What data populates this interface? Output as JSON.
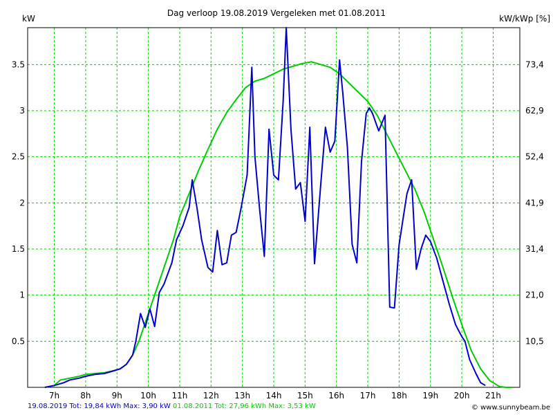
{
  "chart_data": {
    "type": "line",
    "title": "Dag  verloop 19.08.2019   Vergeleken met 01.08.2011",
    "ylabel_left": "kW",
    "ylabel_right": "kW/kWp [%]",
    "xlim": [
      6.15,
      21.85
    ],
    "ylim": [
      0,
      3.9
    ],
    "x_ticks": [
      7,
      8,
      9,
      10,
      11,
      12,
      13,
      14,
      15,
      16,
      17,
      18,
      19,
      20,
      21
    ],
    "x_tick_labels": [
      "7h",
      "8h",
      "9h",
      "10h",
      "11h",
      "12h",
      "13h",
      "14h",
      "15h",
      "16h",
      "17h",
      "18h",
      "19h",
      "20h",
      "21h"
    ],
    "y_ticks": [
      0.5,
      1,
      1.5,
      2,
      2.5,
      3,
      3.5
    ],
    "y_tick_labels": [
      "0.5",
      "1",
      "1.5",
      "2",
      "2.5",
      "3",
      "3.5"
    ],
    "y2_tick_labels": [
      "10,5",
      "21,0",
      "31,4",
      "41,9",
      "52,4",
      "62,9",
      "73,4"
    ],
    "grid": true,
    "series": [
      {
        "name": "19.08.2019",
        "color": "#0000cc",
        "summary": "19.08.2019 Tot: 19,84 kWh Max: 3,90 kW",
        "x": [
          6.7,
          7.0,
          7.3,
          7.5,
          7.8,
          8.0,
          8.3,
          8.6,
          8.9,
          9.1,
          9.3,
          9.5,
          9.6,
          9.75,
          9.9,
          10.05,
          10.2,
          10.35,
          10.5,
          10.75,
          10.9,
          11.1,
          11.3,
          11.4,
          11.55,
          11.7,
          11.9,
          12.05,
          12.2,
          12.35,
          12.5,
          12.65,
          12.8,
          12.95,
          13.15,
          13.3,
          13.4,
          13.55,
          13.7,
          13.85,
          14.0,
          14.15,
          14.3,
          14.4,
          14.55,
          14.7,
          14.85,
          15.0,
          15.15,
          15.3,
          15.5,
          15.65,
          15.8,
          15.95,
          16.1,
          16.2,
          16.35,
          16.5,
          16.65,
          16.8,
          16.95,
          17.05,
          17.15,
          17.35,
          17.55,
          17.7,
          17.85,
          18.0,
          18.25,
          18.4,
          18.55,
          18.7,
          18.85,
          19.0,
          19.2,
          19.4,
          19.6,
          19.8,
          20.0,
          20.1,
          20.25,
          20.45,
          20.6,
          20.75
        ],
        "y": [
          0,
          0.02,
          0.05,
          0.08,
          0.1,
          0.12,
          0.14,
          0.15,
          0.18,
          0.2,
          0.25,
          0.35,
          0.5,
          0.8,
          0.65,
          0.85,
          0.66,
          1.03,
          1.12,
          1.35,
          1.6,
          1.75,
          1.95,
          2.25,
          1.95,
          1.6,
          1.3,
          1.25,
          1.7,
          1.33,
          1.35,
          1.65,
          1.68,
          1.93,
          2.3,
          3.47,
          2.5,
          1.93,
          1.42,
          2.8,
          2.3,
          2.25,
          3.1,
          3.9,
          2.8,
          2.15,
          2.22,
          1.8,
          2.82,
          1.34,
          2.2,
          2.82,
          2.55,
          2.67,
          3.55,
          3.2,
          2.6,
          1.55,
          1.35,
          2.45,
          2.97,
          3.03,
          2.97,
          2.78,
          2.95,
          0.87,
          0.86,
          1.55,
          2.1,
          2.25,
          1.28,
          1.5,
          1.65,
          1.58,
          1.4,
          1.15,
          0.9,
          0.68,
          0.55,
          0.5,
          0.3,
          0.15,
          0.05,
          0.02
        ]
      },
      {
        "name": "01.08.2011",
        "color": "#00cc00",
        "summary": "01.08.2011 Tot: 27,96 kWh Max: 3,53 kW",
        "x": [
          6.7,
          7.0,
          7.2,
          7.5,
          7.8,
          8.0,
          8.3,
          8.6,
          8.9,
          9.1,
          9.3,
          9.5,
          9.7,
          9.9,
          10.1,
          10.3,
          10.5,
          10.8,
          11.0,
          11.3,
          11.6,
          11.9,
          12.2,
          12.5,
          12.8,
          13.1,
          13.4,
          13.7,
          14.0,
          14.3,
          14.6,
          14.9,
          15.2,
          15.5,
          15.8,
          16.1,
          16.4,
          16.7,
          17.0,
          17.3,
          17.6,
          17.9,
          18.2,
          18.5,
          18.8,
          19.1,
          19.4,
          19.7,
          20.0,
          20.3,
          20.6,
          20.9,
          21.2,
          21.4,
          21.6
        ],
        "y": [
          0,
          0.02,
          0.08,
          0.1,
          0.12,
          0.14,
          0.15,
          0.16,
          0.18,
          0.2,
          0.25,
          0.35,
          0.5,
          0.7,
          0.9,
          1.1,
          1.3,
          1.6,
          1.85,
          2.1,
          2.35,
          2.58,
          2.8,
          2.98,
          3.12,
          3.25,
          3.32,
          3.35,
          3.4,
          3.45,
          3.48,
          3.51,
          3.53,
          3.5,
          3.47,
          3.4,
          3.3,
          3.2,
          3.1,
          2.95,
          2.75,
          2.55,
          2.35,
          2.15,
          1.9,
          1.6,
          1.3,
          0.98,
          0.68,
          0.4,
          0.2,
          0.07,
          0.01,
          0,
          0
        ]
      }
    ],
    "credit": "© www.sunnybeam.be"
  }
}
